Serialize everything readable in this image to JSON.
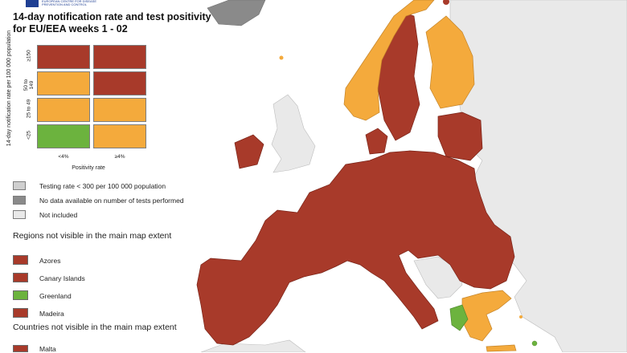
{
  "colors": {
    "red": "#a83a2a",
    "orange": "#f4aa3c",
    "green": "#6cb33e",
    "grey_light": "#cfcfcf",
    "grey_dark": "#8a8a8a",
    "not_included": "#e9e9e9",
    "sea": "#ffffff"
  },
  "header": {
    "logo_text": "EUROPEAN CENTRE FOR DISEASE PREVENTION AND CONTROL",
    "title": "14-day notification rate and test positivity for EU/EEA weeks 1 - 02"
  },
  "matrix": {
    "y_axis_label": "14-day notification rate per 100 000 population",
    "x_axis_label": "Positivity rate",
    "rows": [
      {
        "label": "≥150",
        "cells": [
          "red",
          "red"
        ]
      },
      {
        "label": "50 to 149",
        "cells": [
          "orange",
          "red"
        ]
      },
      {
        "label": "25 to 49",
        "cells": [
          "orange",
          "orange"
        ]
      },
      {
        "label": "<25",
        "cells": [
          "green",
          "orange"
        ]
      }
    ],
    "columns": [
      "<4%",
      "≥4%"
    ]
  },
  "legend": [
    {
      "label": "Testing rate < 300 per 100 000 population",
      "color": "grey_light"
    },
    {
      "label": "No data available on number of tests performed",
      "color": "grey_dark"
    },
    {
      "label": "Not included",
      "color": "not_included"
    }
  ],
  "regions_section": {
    "title": "Regions not visible in the main map extent",
    "items": [
      {
        "label": "Azores",
        "color": "red"
      },
      {
        "label": "Canary Islands",
        "color": "red"
      },
      {
        "label": "Greenland",
        "color": "green"
      },
      {
        "label": "Madeira",
        "color": "red"
      }
    ]
  },
  "countries_section": {
    "title": "Countries not visible in the main map extent",
    "items": [
      {
        "label": "Malta",
        "color": "red"
      }
    ]
  }
}
